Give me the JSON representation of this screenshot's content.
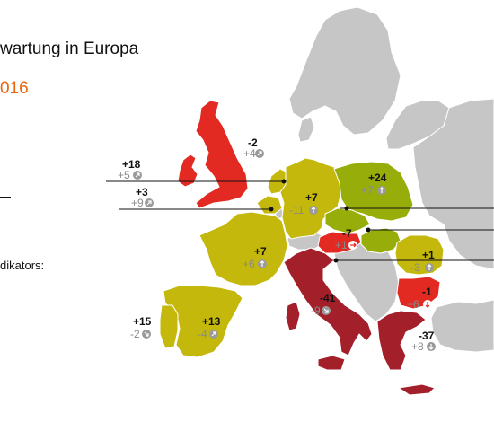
{
  "header": {
    "title": "wartung in Europa",
    "subtitle": "016",
    "legend_heading": "dikators:"
  },
  "colors": {
    "strong_negative": "#a3202a",
    "negative": "#e32a22",
    "positive": "#c3b80b",
    "strong_positive": "#97ad0a",
    "neutral": "#c6c6c6",
    "accent": "#e8650c"
  },
  "countries": [
    {
      "id": "uk",
      "value": "+18",
      "previous": "+5",
      "trend": "up-right",
      "color": "negative"
    },
    {
      "id": "ireland",
      "value": "",
      "previous": "",
      "trend": "",
      "color": "negative"
    },
    {
      "id": "netherlands",
      "value": "-2",
      "previous": "+4",
      "trend": "up-right",
      "color": "positive"
    },
    {
      "id": "belgium",
      "value": "+3",
      "previous": "+9",
      "trend": "up-right",
      "color": "positive"
    },
    {
      "id": "germany",
      "value": "+7",
      "previous": "-11",
      "trend": "up",
      "color": "positive"
    },
    {
      "id": "poland",
      "value": "+24",
      "previous": "+7",
      "trend": "up",
      "color": "strong_positive"
    },
    {
      "id": "czech",
      "value": "",
      "previous": "",
      "trend": "",
      "color": "strong_positive"
    },
    {
      "id": "austria",
      "value": "-7",
      "previous": "+1",
      "trend": "right",
      "color": "negative"
    },
    {
      "id": "hungary",
      "value": "",
      "previous": "",
      "trend": "",
      "color": "strong_positive"
    },
    {
      "id": "france",
      "value": "+7",
      "previous": "+6",
      "trend": "up",
      "color": "positive"
    },
    {
      "id": "spain",
      "value": "+13",
      "previous": "-4",
      "trend": "up-right",
      "color": "positive"
    },
    {
      "id": "portugal",
      "value": "+15",
      "previous": "-2",
      "trend": "down-right",
      "color": "positive"
    },
    {
      "id": "italy",
      "value": "-41",
      "previous": "-9",
      "trend": "down-right",
      "color": "strong_negative"
    },
    {
      "id": "romania",
      "value": "+1",
      "previous": "-3",
      "trend": "up",
      "color": "positive"
    },
    {
      "id": "bulgaria",
      "value": "-1",
      "previous": "+6",
      "trend": "down",
      "color": "negative"
    },
    {
      "id": "greece",
      "value": "-37",
      "previous": "+8",
      "trend": "down",
      "color": "strong_negative"
    }
  ]
}
